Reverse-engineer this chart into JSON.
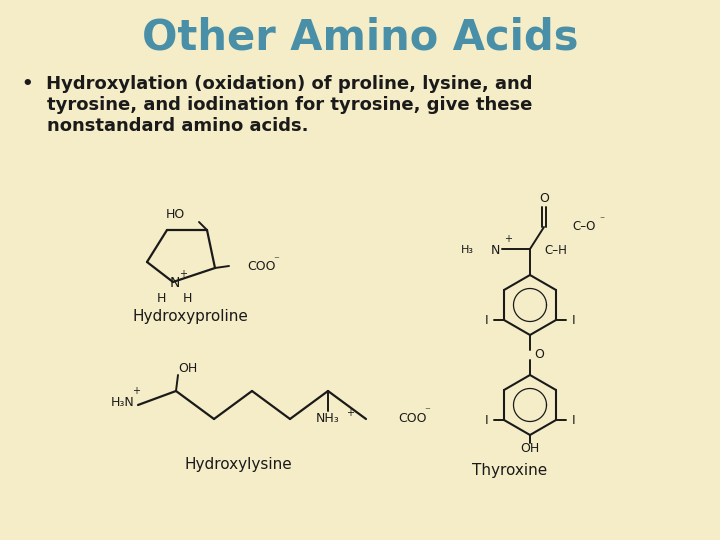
{
  "bg_color": "#f5edc8",
  "title": "Other Amino Acids",
  "title_color": "#4a8fa8",
  "title_fontsize": 30,
  "bullet_line1": "•  Hydroxylation (oxidation) of proline, lysine, and",
  "bullet_line2": "    tyrosine, and iodination for tyrosine, give these",
  "bullet_line3": "    nonstandard amino acids.",
  "text_color": "#1a1a1a",
  "text_fontsize": 13,
  "label_hydroxyproline": "Hydroxyproline",
  "label_hydroxylysine": "Hydroxylysine",
  "label_thyroxine": "Thyroxine",
  "struct_color": "#1a1a1a"
}
